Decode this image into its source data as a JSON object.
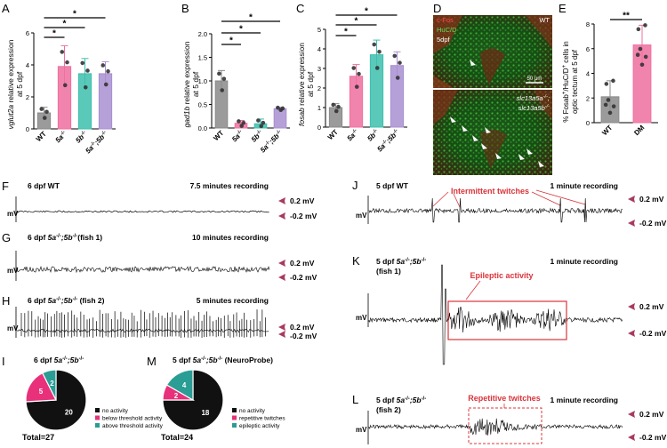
{
  "panels": {
    "A": {
      "letter": "A",
      "ylabel_italic": "vglut2a",
      "ylabel_rest": " relative expression",
      "ylabel2": "at 5 dpf",
      "yticks": [
        "0",
        "2",
        "4",
        "6"
      ],
      "sig": [
        "*",
        "*",
        "*"
      ],
      "cats": [
        {
          "base": "WT",
          "sup": ""
        },
        {
          "base": "5a",
          "sup": "-/-"
        },
        {
          "base": "5b",
          "sup": "-/-"
        },
        {
          "base": "5a",
          "sup": "-/-",
          "base2": ";5b",
          "sup2": "-/-"
        }
      ]
    },
    "B": {
      "letter": "B",
      "ylabel_italic": "gad1b",
      "ylabel_rest": " relative expression",
      "ylabel2": "at 5 dpf",
      "yticks": [
        "0.0",
        "0.5",
        "1.0",
        "1.5",
        "2.0"
      ],
      "sig": [
        "*",
        "*",
        "*"
      ],
      "cats": [
        {
          "base": "WT",
          "sup": ""
        },
        {
          "base": "5a",
          "sup": "-/-"
        },
        {
          "base": "5b",
          "sup": "-/-"
        },
        {
          "base": "5a",
          "sup": "-/-",
          "base2": ";5b",
          "sup2": "-/-"
        }
      ]
    },
    "C": {
      "letter": "C",
      "ylabel_italic": "fosab",
      "ylabel_rest": " relative expression",
      "ylabel2": "at 5 dpf",
      "yticks": [
        "0",
        "1",
        "2",
        "3",
        "4",
        "5"
      ],
      "sig": [
        "*",
        "*",
        "*"
      ],
      "cats": [
        {
          "base": "WT",
          "sup": ""
        },
        {
          "base": "5a",
          "sup": "-/-"
        },
        {
          "base": "5b",
          "sup": "-/-"
        },
        {
          "base": "5a",
          "sup": "-/-",
          "base2": ";5b",
          "sup2": "-/-"
        }
      ]
    },
    "D": {
      "letter": "D",
      "legend": [
        "c-Fos",
        "HuC/D",
        "5dpf"
      ],
      "wt": "WT",
      "scale": "50 μm",
      "mut1": "slc13a5a",
      "mut1sup": "-/-",
      "mut1end": ";",
      "mut2": "slc13a5b",
      "mut2sup": "-/-"
    },
    "E": {
      "letter": "E",
      "ylabel1": "% Fosab",
      "ylabel1sup": "+",
      "ylabel1b": "/HuC/D",
      "ylabel1bsup": "+",
      "ylabel1c": " cells in",
      "ylabel2": "optic tectum at 5 dpf",
      "yticks": [
        "0",
        "2",
        "4",
        "6",
        "8"
      ],
      "sig": "**",
      "cats": [
        "WT",
        "DM"
      ]
    },
    "F": {
      "letter": "F",
      "title": "6 dpf WT",
      "duration": "7.5 minutes recording"
    },
    "G": {
      "letter": "G",
      "title": "6 dpf ",
      "title_it": "5a",
      "tsup1": "-/-",
      "title_it2": ";5b",
      "tsup2": "-/-",
      "title_end": "(fish 1)",
      "duration": "10 minutes recording"
    },
    "H": {
      "letter": "H",
      "title": "6 dpf ",
      "title_it": "5a",
      "tsup1": "-/-",
      "title_it2": ";5b",
      "tsup2": "-/-",
      "title_end": " (fish 2)",
      "duration": "5 minutes recording"
    },
    "I": {
      "letter": "I",
      "title": "6 dpf ",
      "title_it": "5a",
      "tsup1": "-/-",
      "title_it2": ";5b",
      "tsup2": "-/-",
      "total": "Total=27",
      "legend": [
        "no activity",
        "below threshold activity",
        "above threshold activity"
      ]
    },
    "J": {
      "letter": "J",
      "title": "5 dpf WT",
      "duration": "1 minute recording",
      "annotation": "Intermittent twitches"
    },
    "K": {
      "letter": "K",
      "title": "5 dpf ",
      "title_it": "5a",
      "tsup1": "-/-",
      "title_it2": ";5b",
      "tsup2": "-/-",
      "title_line2": "(fish 1)",
      "duration": "1 minute recording",
      "annotation": "Epileptic activity"
    },
    "L": {
      "letter": "L",
      "title": "5 dpf ",
      "title_it": "5a",
      "tsup1": "-/-",
      "title_it2": ";5b",
      "tsup2": "-/-",
      "title_line2": "(fish 2)",
      "duration": "1 minute recording",
      "annotation": "Repetitive twitches"
    },
    "M": {
      "letter": "M",
      "title": "5 dpf ",
      "title_it": "5a",
      "tsup1": "-/-",
      "title_it2": ";5b",
      "tsup2": "-/-",
      "title_end": " (NeuroProbe)",
      "total": "Total=24",
      "legend": [
        "no activity",
        "repetitive twitches",
        "epileptic activity"
      ]
    }
  },
  "trace_labels": {
    "unit": "mV",
    "pos": "0.2 mV",
    "neg": "-0.2 mV"
  },
  "colors": {
    "wt": "#8a8a8a",
    "a5": "#ef6f9f",
    "b5": "#3dbfae",
    "dm": "#a98fd1",
    "arrow": "#a83a5d",
    "box": "#d9343a",
    "pie_black": "#111111",
    "pie_pink": "#e8317a",
    "pie_teal": "#2a9d95"
  },
  "chart_data": [
    {
      "type": "bar",
      "title": "",
      "ylabel": "vglut2a relative expression at 5 dpf",
      "categories": [
        "WT",
        "5a-/-",
        "5b-/-",
        "5a-/-;5b-/-"
      ],
      "values": [
        1.0,
        3.9,
        3.45,
        3.45
      ],
      "errors": [
        0.35,
        1.3,
        0.95,
        0.75
      ],
      "ylim": [
        0,
        6
      ]
    },
    {
      "type": "bar",
      "title": "",
      "ylabel": "gad1b relative expression at 5 dpf",
      "categories": [
        "WT",
        "5a-/-",
        "5b-/-",
        "5a-/-;5b-/-"
      ],
      "values": [
        1.0,
        0.1,
        0.09,
        0.41
      ],
      "errors": [
        0.22,
        0.06,
        0.1,
        0.03
      ],
      "ylim": [
        0,
        2.0
      ]
    },
    {
      "type": "bar",
      "title": "",
      "ylabel": "fosab relative expression at 5 dpf",
      "categories": [
        "WT",
        "5a-/-",
        "5b-/-",
        "5a-/-;5b-/-"
      ],
      "values": [
        1.0,
        2.6,
        3.7,
        3.15
      ],
      "errors": [
        0.2,
        0.6,
        0.75,
        0.7
      ],
      "ylim": [
        0,
        5
      ]
    },
    {
      "type": "bar",
      "title": "",
      "ylabel": "% Fosab+/HuC/D+ cells in optic tectum at 5 dpf",
      "categories": [
        "WT",
        "DM"
      ],
      "values": [
        2.1,
        6.3
      ],
      "errors": [
        1.3,
        1.6
      ],
      "ylim": [
        0,
        8
      ]
    },
    {
      "type": "pie",
      "title": "6 dpf 5a-/-;5b-/-",
      "labels": [
        "no activity",
        "below threshold activity",
        "above threshold activity"
      ],
      "values": [
        20,
        5,
        2
      ]
    },
    {
      "type": "pie",
      "title": "5 dpf 5a-/-;5b-/- (NeuroProbe)",
      "labels": [
        "no activity",
        "repetitive twitches",
        "epileptic activity"
      ],
      "values": [
        18,
        2,
        4
      ]
    }
  ]
}
